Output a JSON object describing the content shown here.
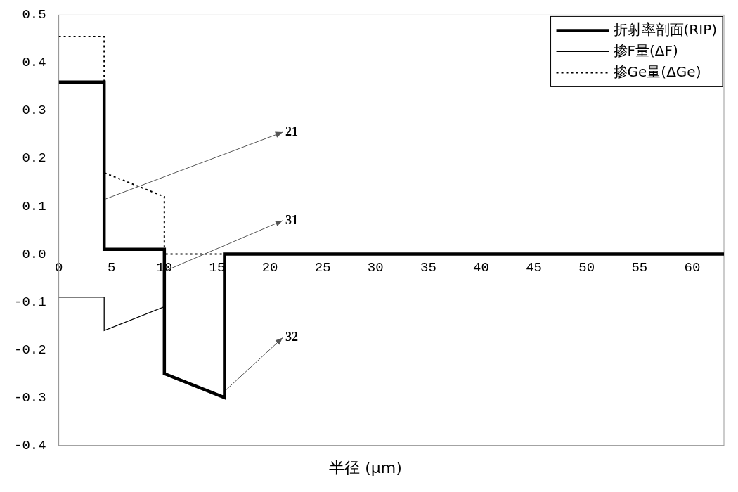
{
  "chart_data": {
    "type": "line",
    "xlabel": "半径 (μm)",
    "xlim": [
      0,
      63
    ],
    "xticks": [
      0,
      5,
      10,
      15,
      20,
      25,
      30,
      35,
      40,
      45,
      50,
      55,
      60
    ],
    "ylim": [
      -0.4,
      0.5
    ],
    "yticks": [
      0.5,
      0.4,
      0.3,
      0.2,
      0.1,
      {
        "value": 0,
        "label": "0.0"
      },
      -0.1,
      -0.2,
      -0.3,
      -0.4
    ],
    "grid": false,
    "legend": "upper right",
    "series": [
      {
        "name": "折射率剖面(RIP)",
        "color": "#000000",
        "line_style": "solid",
        "x": [
          0,
          4.3,
          4.3,
          10,
          10,
          15.7,
          15.7,
          63
        ],
        "values": [
          0.36,
          0.36,
          0.01,
          0.01,
          -0.25,
          -0.3,
          0,
          0
        ]
      },
      {
        "name": "掺F量(ΔF)",
        "color": "#000000",
        "line_style": "solid",
        "x": [
          0,
          4.3,
          4.3,
          10,
          10,
          15.7,
          15.7,
          63
        ],
        "values": [
          -0.09,
          -0.09,
          -0.16,
          -0.11,
          -0.25,
          -0.3,
          0,
          0
        ]
      },
      {
        "name": "掺Ge量(ΔGe)",
        "color": "#000000",
        "line_style": "dotted",
        "x": [
          0,
          4.3,
          4.3,
          10,
          10,
          15.7,
          63
        ],
        "values": [
          0.455,
          0.455,
          0.17,
          0.12,
          0,
          0,
          0
        ]
      }
    ],
    "annotations": [
      {
        "text": "21"
      },
      {
        "text": "31"
      },
      {
        "text": "32"
      }
    ]
  }
}
